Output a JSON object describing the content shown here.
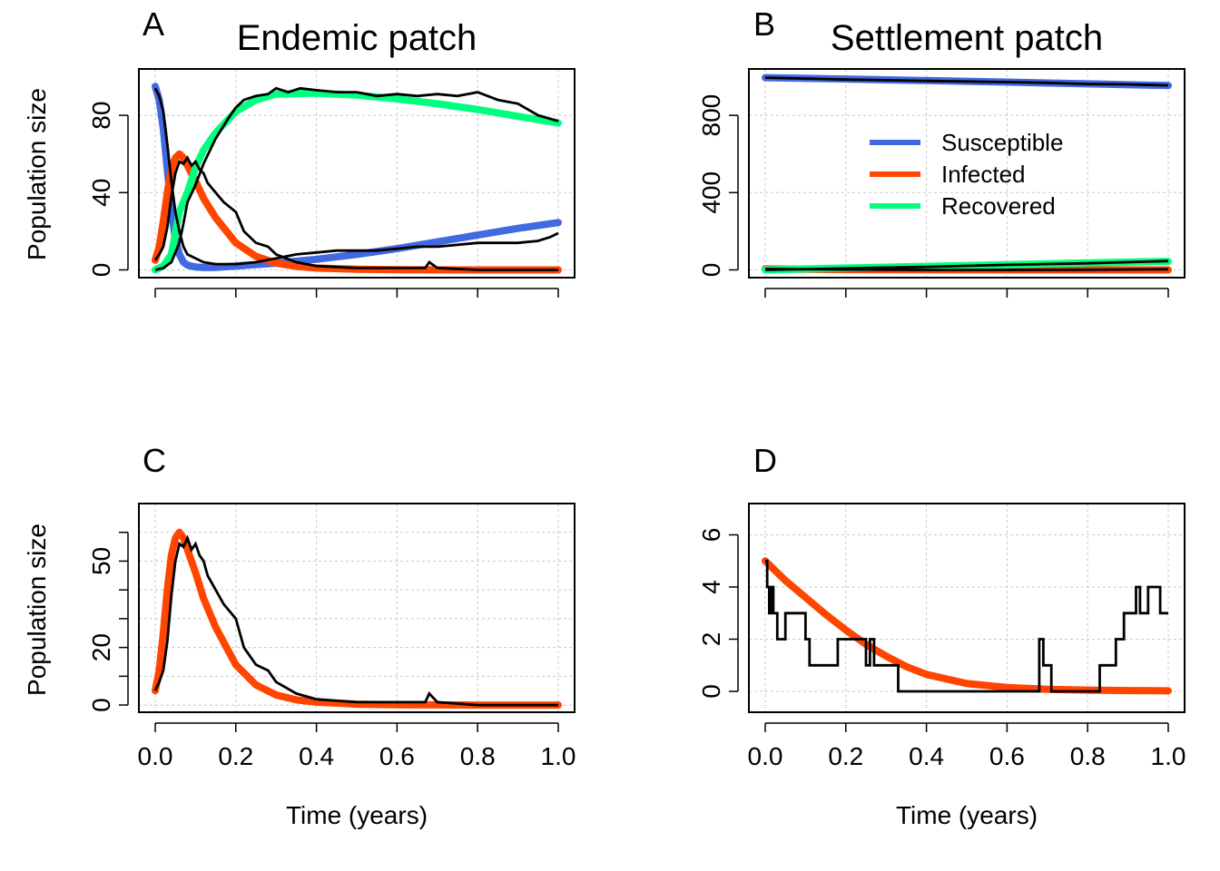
{
  "colors": {
    "susceptible": "#4169E1",
    "infected": "#FF4500",
    "recovered": "#00FF7F",
    "simulation": "#000000"
  },
  "legend": {
    "placement": "inside panel B, middle",
    "items": [
      {
        "key": "susceptible",
        "label": "Susceptible"
      },
      {
        "key": "infected",
        "label": "Infected"
      },
      {
        "key": "recovered",
        "label": "Recovered"
      }
    ]
  },
  "chart_data": [
    {
      "id": "A",
      "type": "line",
      "letter": "A",
      "title": "Endemic patch",
      "xlabel": "",
      "ylabel": "Population size",
      "xlim": [
        0,
        1
      ],
      "ylim": [
        -4,
        104
      ],
      "xticks": [
        0,
        0.2,
        0.4,
        0.6,
        0.8,
        1.0
      ],
      "xtick_labels": [],
      "yticks": [
        0,
        40,
        80
      ],
      "ytick_labels": [
        "0",
        "40",
        "80"
      ],
      "grid": true,
      "series": [
        {
          "key": "susceptible",
          "kind": "ode",
          "x": [
            0,
            0.01,
            0.02,
            0.03,
            0.04,
            0.05,
            0.06,
            0.07,
            0.08,
            0.1,
            0.12,
            0.15,
            0.2,
            0.3,
            0.4,
            0.5,
            0.6,
            0.7,
            0.8,
            0.9,
            1.0
          ],
          "values": [
            95,
            88,
            73,
            52,
            31,
            16,
            8,
            4,
            2.5,
            1.5,
            1.2,
            1.3,
            2,
            3.5,
            5.5,
            8,
            11,
            14.5,
            18,
            21.5,
            24.5
          ]
        },
        {
          "key": "infected",
          "kind": "ode",
          "x": [
            0,
            0.01,
            0.02,
            0.03,
            0.04,
            0.05,
            0.06,
            0.07,
            0.08,
            0.1,
            0.12,
            0.15,
            0.2,
            0.25,
            0.3,
            0.35,
            0.4,
            0.5,
            0.6,
            0.8,
            1.0
          ],
          "values": [
            5,
            12,
            25,
            40,
            52,
            58,
            60,
            58,
            54,
            46,
            37,
            27,
            14,
            7,
            3.5,
            1.8,
            1,
            0.3,
            0.1,
            0,
            0
          ]
        },
        {
          "key": "recovered",
          "kind": "ode",
          "x": [
            0,
            0.02,
            0.04,
            0.06,
            0.08,
            0.1,
            0.12,
            0.15,
            0.2,
            0.25,
            0.3,
            0.4,
            0.5,
            0.6,
            0.7,
            0.8,
            0.9,
            1.0
          ],
          "values": [
            0,
            2,
            8,
            30,
            40,
            53,
            62,
            71,
            82,
            88,
            91,
            91.5,
            90.5,
            88.5,
            86,
            83,
            79.5,
            76
          ]
        },
        {
          "key": "susceptible",
          "kind": "sim",
          "x": [
            0,
            0.01,
            0.02,
            0.03,
            0.04,
            0.05,
            0.06,
            0.07,
            0.08,
            0.1,
            0.12,
            0.15,
            0.2,
            0.25,
            0.3,
            0.35,
            0.4,
            0.45,
            0.5,
            0.55,
            0.6,
            0.65,
            0.7,
            0.75,
            0.8,
            0.85,
            0.9,
            0.95,
            0.98,
            1.0
          ],
          "values": [
            94,
            90,
            82,
            65,
            46,
            30,
            20,
            12,
            8,
            6,
            4,
            3,
            3,
            4,
            6,
            8,
            9,
            10,
            10,
            10,
            11,
            12,
            12,
            13,
            14,
            14,
            14,
            15,
            17,
            19
          ]
        },
        {
          "key": "infected",
          "kind": "sim",
          "x": [
            0,
            0.01,
            0.02,
            0.03,
            0.04,
            0.05,
            0.06,
            0.07,
            0.08,
            0.09,
            0.1,
            0.11,
            0.12,
            0.13,
            0.15,
            0.17,
            0.2,
            0.22,
            0.25,
            0.28,
            0.3,
            0.35,
            0.4,
            0.5,
            0.6,
            0.67,
            0.68,
            0.7,
            0.8,
            1.0
          ],
          "values": [
            5,
            8,
            12,
            22,
            38,
            50,
            56,
            55,
            58,
            54,
            56,
            52,
            50,
            45,
            40,
            35,
            30,
            20,
            14,
            12,
            8,
            4,
            2,
            1,
            1,
            1,
            4,
            1,
            0,
            0
          ]
        },
        {
          "key": "recovered",
          "kind": "sim",
          "x": [
            0,
            0.02,
            0.04,
            0.06,
            0.07,
            0.08,
            0.1,
            0.12,
            0.15,
            0.18,
            0.2,
            0.22,
            0.25,
            0.28,
            0.3,
            0.33,
            0.36,
            0.4,
            0.45,
            0.5,
            0.55,
            0.6,
            0.65,
            0.7,
            0.75,
            0.8,
            0.85,
            0.9,
            0.95,
            1.0
          ],
          "values": [
            0,
            1,
            4,
            14,
            24,
            35,
            44,
            55,
            68,
            78,
            84,
            88,
            90,
            91,
            94,
            92,
            94,
            93,
            92,
            92,
            90,
            91,
            90,
            91,
            90,
            92,
            88,
            86,
            80,
            77
          ]
        }
      ]
    },
    {
      "id": "B",
      "type": "line",
      "letter": "B",
      "title": "Settlement patch",
      "xlabel": "",
      "ylabel": "",
      "xlim": [
        0,
        1
      ],
      "ylim": [
        -40,
        1040
      ],
      "xticks": [
        0,
        0.2,
        0.4,
        0.6,
        0.8,
        1.0
      ],
      "xtick_labels": [],
      "yticks": [
        0,
        400,
        800
      ],
      "ytick_labels": [
        "0",
        "400",
        "800"
      ],
      "grid": true,
      "series": [
        {
          "key": "susceptible",
          "kind": "ode",
          "x": [
            0,
            0.2,
            0.4,
            0.6,
            0.8,
            1.0
          ],
          "values": [
            995,
            988,
            980,
            972,
            963,
            954
          ]
        },
        {
          "key": "infected",
          "kind": "ode",
          "x": [
            0,
            0.2,
            0.4,
            0.6,
            0.8,
            1.0
          ],
          "values": [
            5,
            2,
            1,
            0.5,
            0.3,
            0.1
          ]
        },
        {
          "key": "recovered",
          "kind": "ode",
          "x": [
            0,
            0.2,
            0.4,
            0.6,
            0.8,
            1.0
          ],
          "values": [
            0,
            10,
            18,
            27,
            36,
            44
          ]
        },
        {
          "key": "susceptible",
          "kind": "sim",
          "x": [
            0,
            0.1,
            0.2,
            0.3,
            0.4,
            0.5,
            0.6,
            0.7,
            0.8,
            0.9,
            1.0
          ],
          "values": [
            995,
            990,
            985,
            982,
            978,
            975,
            972,
            968,
            962,
            960,
            955
          ]
        },
        {
          "key": "infected",
          "kind": "sim",
          "x": [
            0,
            0.2,
            0.4,
            0.6,
            0.8,
            1.0
          ],
          "values": [
            5,
            2,
            0,
            0,
            1,
            3
          ]
        },
        {
          "key": "recovered",
          "kind": "sim",
          "x": [
            0,
            0.2,
            0.4,
            0.6,
            0.8,
            1.0
          ],
          "values": [
            0,
            8,
            16,
            26,
            34,
            46
          ]
        }
      ]
    },
    {
      "id": "C",
      "type": "line",
      "letter": "C",
      "title": "",
      "xlabel": "Time (years)",
      "ylabel": "Population size",
      "xlim": [
        0,
        1
      ],
      "ylim": [
        -2.5,
        70
      ],
      "xticks": [
        0,
        0.2,
        0.4,
        0.6,
        0.8,
        1.0
      ],
      "xtick_labels": [
        "0.0",
        "0.2",
        "0.4",
        "0.6",
        "0.8",
        "1.0"
      ],
      "yticks": [
        0,
        20,
        50
      ],
      "ytick_labels": [
        "0",
        "20",
        "50"
      ],
      "minor_yticks": [
        10,
        30,
        40,
        60
      ],
      "grid": true,
      "series": [
        {
          "key": "infected",
          "kind": "ode",
          "x": [
            0,
            0.01,
            0.02,
            0.03,
            0.04,
            0.05,
            0.06,
            0.07,
            0.08,
            0.1,
            0.12,
            0.15,
            0.2,
            0.25,
            0.3,
            0.35,
            0.4,
            0.5,
            0.6,
            0.8,
            1.0
          ],
          "values": [
            5,
            12,
            25,
            40,
            52,
            58,
            60,
            58,
            54,
            46,
            37,
            27,
            14,
            7,
            3.5,
            1.8,
            1,
            0.3,
            0.1,
            0,
            0
          ]
        },
        {
          "key": "infected",
          "kind": "sim",
          "x": [
            0,
            0.01,
            0.02,
            0.03,
            0.04,
            0.05,
            0.06,
            0.07,
            0.08,
            0.09,
            0.1,
            0.11,
            0.12,
            0.13,
            0.15,
            0.17,
            0.2,
            0.22,
            0.25,
            0.28,
            0.3,
            0.35,
            0.4,
            0.5,
            0.6,
            0.67,
            0.68,
            0.7,
            0.8,
            1.0
          ],
          "values": [
            5,
            8,
            12,
            22,
            38,
            50,
            56,
            55,
            58,
            54,
            56,
            52,
            50,
            45,
            40,
            35,
            30,
            20,
            14,
            12,
            8,
            4,
            2,
            1,
            1,
            1,
            4,
            1,
            0,
            0
          ]
        }
      ]
    },
    {
      "id": "D",
      "type": "line",
      "letter": "D",
      "title": "",
      "xlabel": "Time (years)",
      "ylabel": "",
      "xlim": [
        0,
        1
      ],
      "ylim": [
        -0.8,
        7.2
      ],
      "xticks": [
        0,
        0.2,
        0.4,
        0.6,
        0.8,
        1.0
      ],
      "xtick_labels": [
        "0.0",
        "0.2",
        "0.4",
        "0.6",
        "0.8",
        "1.0"
      ],
      "yticks": [
        0,
        2,
        4,
        6
      ],
      "ytick_labels": [
        "0",
        "2",
        "4",
        "6"
      ],
      "grid": true,
      "series": [
        {
          "key": "infected",
          "kind": "ode",
          "x": [
            0,
            0.05,
            0.1,
            0.15,
            0.2,
            0.25,
            0.3,
            0.35,
            0.4,
            0.5,
            0.6,
            0.7,
            0.8,
            0.9,
            1.0
          ],
          "values": [
            5,
            4.25,
            3.6,
            2.95,
            2.35,
            1.8,
            1.35,
            0.95,
            0.65,
            0.3,
            0.15,
            0.08,
            0.05,
            0.03,
            0.02
          ]
        },
        {
          "key": "infected",
          "kind": "sim",
          "step": true,
          "x": [
            0,
            0.005,
            0.01,
            0.015,
            0.02,
            0.03,
            0.05,
            0.1,
            0.11,
            0.17,
            0.18,
            0.25,
            0.26,
            0.27,
            0.3,
            0.31,
            0.33,
            0.68,
            0.69,
            0.71,
            0.73,
            0.83,
            0.86,
            0.87,
            0.89,
            0.9,
            0.92,
            0.93,
            0.95,
            0.96,
            0.98,
            1.0
          ],
          "values": [
            5,
            4,
            3,
            4,
            3,
            2,
            3,
            2,
            1,
            1,
            2,
            1,
            2,
            1,
            1,
            1,
            0,
            2,
            1,
            0,
            0,
            1,
            1,
            2,
            3,
            3,
            4,
            3,
            4,
            4,
            3,
            3
          ]
        }
      ]
    }
  ]
}
